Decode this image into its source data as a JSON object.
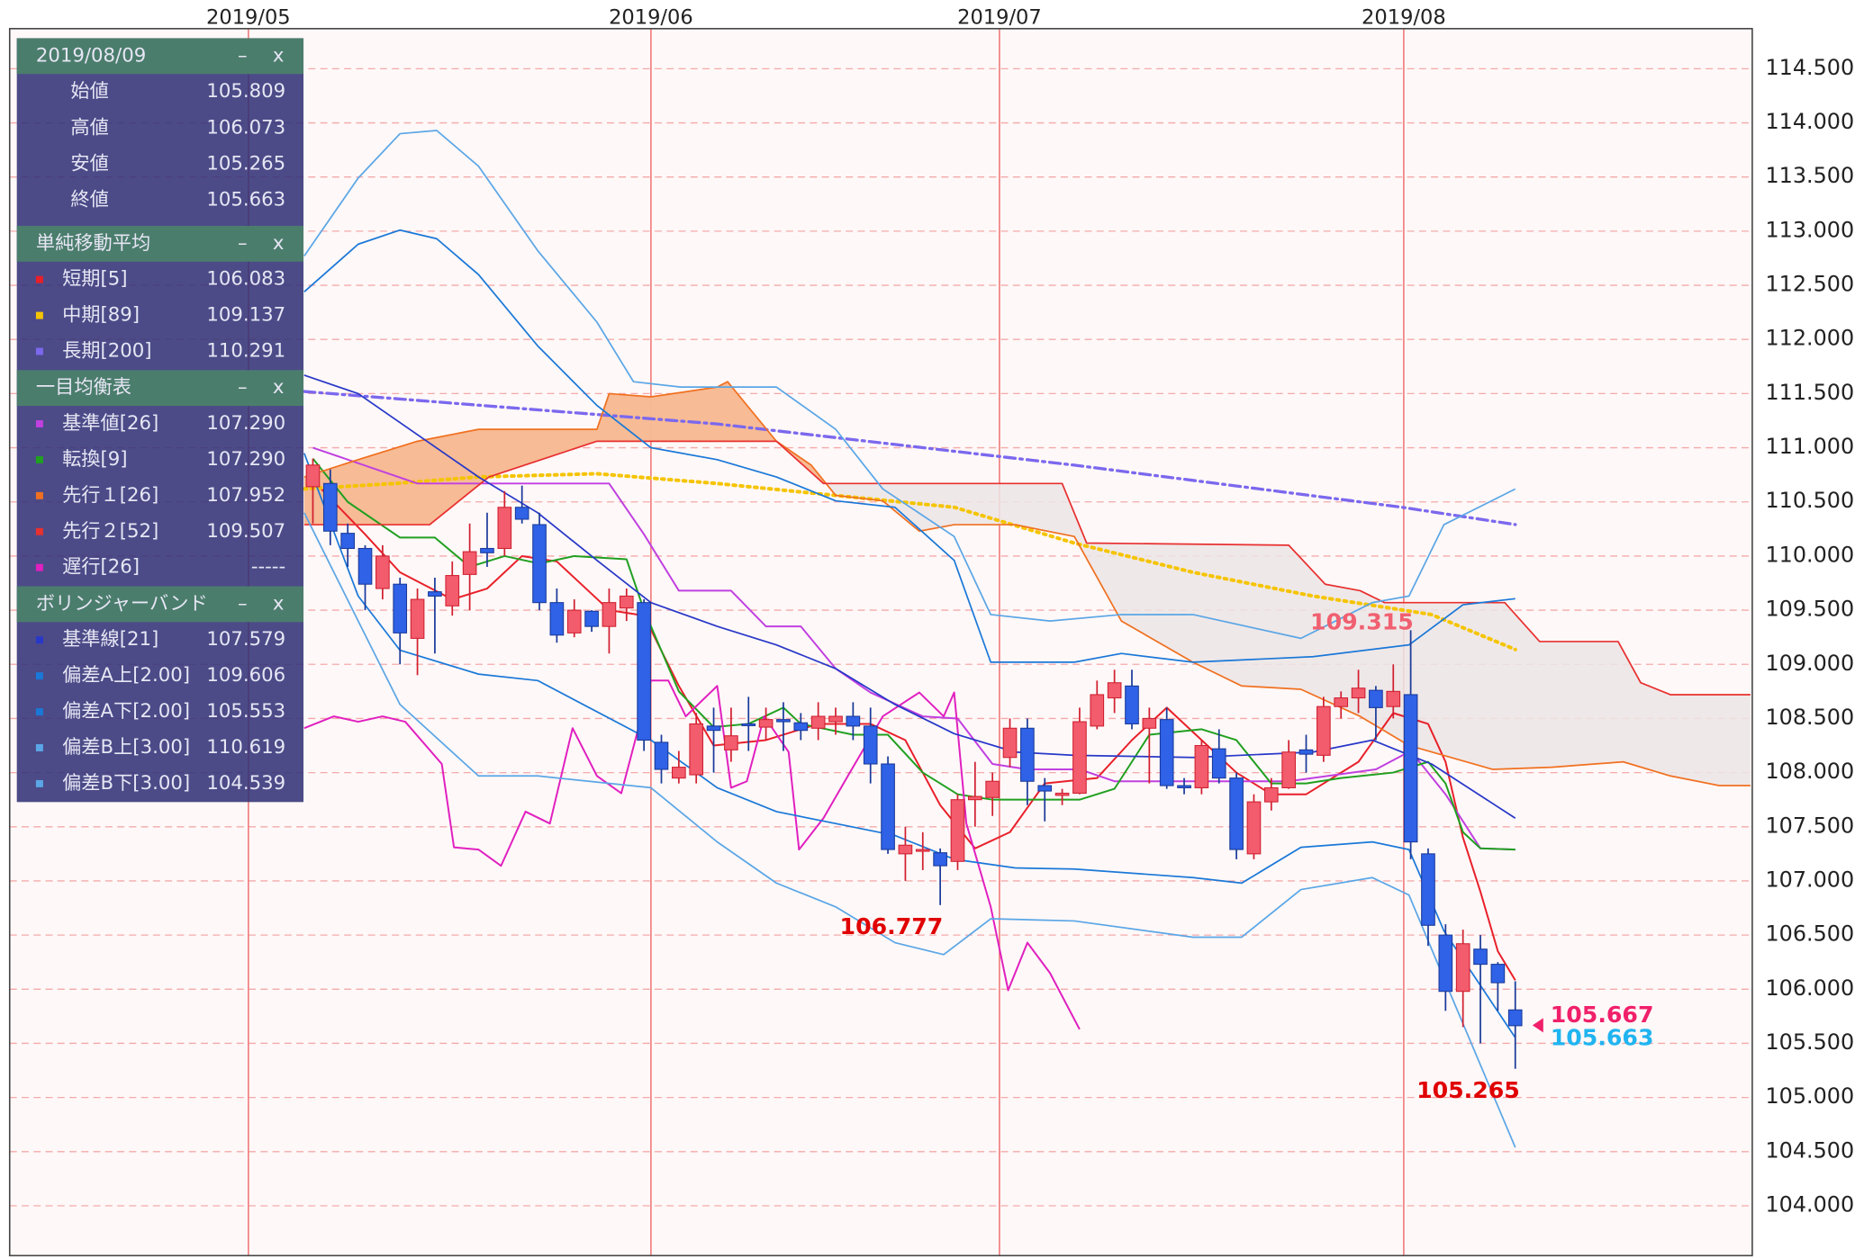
{
  "chart_data": {
    "type": "candlestick",
    "ylim": [
      103.54,
      114.87
    ],
    "yticks": [
      {
        "value": 104,
        "label": "104.000"
      },
      {
        "value": 104.5,
        "label": "104.500"
      },
      {
        "value": 105,
        "label": "105.000"
      },
      {
        "value": 105.5,
        "label": "105.500"
      },
      {
        "value": 106,
        "label": "106.000"
      },
      {
        "value": 106.5,
        "label": "106.500"
      },
      {
        "value": 107,
        "label": "107.000"
      },
      {
        "value": 107.5,
        "label": "107.500"
      },
      {
        "value": 108,
        "label": "108.000"
      },
      {
        "value": 108.5,
        "label": "108.500"
      },
      {
        "value": 109,
        "label": "109.000"
      },
      {
        "value": 109.5,
        "label": "109.500"
      },
      {
        "value": 110,
        "label": "110.000"
      },
      {
        "value": 110.5,
        "label": "110.500"
      },
      {
        "value": 111,
        "label": "111.000"
      },
      {
        "value": 111.5,
        "label": "111.500"
      },
      {
        "value": 112,
        "label": "112.000"
      },
      {
        "value": 112.5,
        "label": "112.500"
      },
      {
        "value": 113,
        "label": "113.000"
      },
      {
        "value": 113.5,
        "label": "113.500"
      },
      {
        "value": 114,
        "label": "114.000"
      },
      {
        "value": 114.5,
        "label": "114.500"
      }
    ],
    "xlim": [
      -17.4,
      82.6
    ],
    "xticks": [
      {
        "value": -3.7,
        "label": "2019/05"
      },
      {
        "value": 19.4,
        "label": "2019/06"
      },
      {
        "value": 39.4,
        "label": "2019/07"
      },
      {
        "value": 62.6,
        "label": "2019/08"
      }
    ],
    "grid": true,
    "up_color": "#f25c6c",
    "down_color": "#2f62e6",
    "open": [
      110.64,
      110.67,
      110.21,
      110.07,
      109.7,
      109.74,
      109.24,
      109.67,
      109.54,
      109.83,
      110.07,
      110.07,
      110.45,
      110.29,
      109.57,
      109.29,
      109.49,
      109.35,
      109.52,
      109.57,
      108.28,
      107.95,
      107.98,
      108.43,
      108.21,
      108.45,
      108.42,
      108.49,
      108.46,
      108.41,
      108.47,
      108.52,
      108.43,
      108.08,
      107.25,
      107.28,
      107.26,
      107.18,
      107.75,
      107.77,
      108.14,
      108.41,
      107.88,
      107.79,
      107.81,
      108.43,
      108.69,
      108.8,
      108.41,
      108.49,
      107.88,
      107.86,
      108.22,
      107.95,
      107.25,
      107.73,
      107.86,
      108.21,
      108.16,
      108.61,
      108.69,
      108.76,
      108.61,
      108.72,
      107.25,
      106.5,
      105.98,
      106.37,
      106.23,
      105.809
    ],
    "high": [
      110.9,
      110.8,
      110.3,
      110.1,
      110.1,
      109.8,
      109.7,
      109.8,
      109.95,
      110.3,
      110.4,
      110.6,
      110.65,
      110.4,
      109.7,
      109.6,
      109.5,
      109.7,
      109.7,
      109.6,
      108.35,
      108.2,
      108.55,
      108.6,
      108.6,
      108.7,
      108.6,
      108.65,
      108.55,
      108.65,
      108.6,
      108.65,
      108.6,
      108.15,
      107.5,
      107.45,
      107.3,
      107.8,
      108.1,
      108.0,
      108.5,
      108.5,
      107.95,
      107.85,
      108.6,
      108.85,
      108.95,
      108.95,
      108.6,
      108.6,
      107.95,
      108.3,
      108.4,
      108.0,
      107.8,
      107.95,
      108.3,
      108.35,
      108.7,
      108.75,
      108.95,
      108.8,
      109.0,
      109.315,
      107.3,
      106.6,
      106.55,
      106.5,
      106.25,
      106.073
    ],
    "low": [
      110.3,
      110.1,
      109.9,
      109.5,
      109.6,
      109.0,
      108.9,
      109.1,
      109.45,
      109.5,
      109.9,
      110.0,
      110.3,
      109.5,
      109.2,
      109.25,
      109.3,
      109.1,
      109.4,
      108.2,
      107.9,
      107.9,
      107.9,
      108.0,
      108.1,
      108.2,
      108.3,
      108.2,
      108.3,
      108.3,
      108.35,
      108.3,
      107.9,
      107.25,
      107.0,
      107.1,
      106.777,
      107.1,
      107.5,
      107.6,
      108.05,
      107.7,
      107.55,
      107.7,
      107.8,
      108.4,
      108.55,
      108.4,
      107.9,
      107.85,
      107.8,
      107.8,
      107.9,
      107.2,
      107.2,
      107.65,
      107.85,
      108.0,
      108.1,
      108.5,
      108.55,
      108.3,
      108.5,
      107.2,
      106.4,
      105.8,
      105.65,
      105.5,
      105.8,
      105.265
    ],
    "close": [
      110.84,
      110.23,
      110.07,
      109.74,
      110.0,
      109.29,
      109.6,
      109.63,
      109.82,
      110.04,
      110.03,
      110.45,
      110.34,
      109.57,
      109.27,
      109.5,
      109.35,
      109.57,
      109.63,
      108.3,
      108.03,
      108.05,
      108.45,
      108.39,
      108.34,
      108.44,
      108.49,
      108.47,
      108.39,
      108.52,
      108.52,
      108.43,
      108.08,
      107.29,
      107.33,
      107.29,
      107.14,
      107.75,
      107.78,
      107.92,
      108.41,
      107.92,
      107.83,
      107.81,
      108.47,
      108.72,
      108.83,
      108.45,
      108.5,
      107.88,
      107.86,
      108.25,
      107.95,
      107.29,
      107.73,
      107.86,
      108.19,
      108.17,
      108.61,
      108.69,
      108.78,
      108.6,
      108.75,
      107.36,
      106.59,
      105.98,
      106.42,
      106.23,
      106.06,
      105.663
    ],
    "cloud_colors": [
      "#f7b68c",
      "#ece5e5"
    ],
    "lines": [
      {
        "color": "#e8202a",
        "width": 1.5,
        "x": [
          0,
          3,
          5,
          8,
          10,
          12,
          14,
          17,
          19,
          21,
          23,
          26,
          29,
          32,
          34,
          36,
          38,
          40,
          42,
          45,
          47,
          49,
          51,
          53,
          55,
          57,
          60,
          62,
          64,
          65,
          66,
          67,
          68,
          69
        ],
        "values": [
          110.7,
          110.2,
          109.85,
          109.6,
          109.7,
          110.0,
          109.95,
          109.5,
          109.45,
          108.8,
          108.25,
          108.3,
          108.45,
          108.45,
          108.3,
          107.7,
          107.3,
          107.45,
          107.9,
          107.95,
          108.3,
          108.6,
          108.3,
          108.0,
          107.8,
          107.8,
          108.1,
          108.55,
          108.45,
          108.1,
          107.4,
          106.9,
          106.35,
          106.083
        ]
      },
      {
        "color": "#f5c400",
        "width": 3,
        "dash": "dot",
        "x": [
          -0.5,
          4.7,
          9.5,
          16.3,
          23.2,
          30,
          36.8,
          43.7,
          50.5,
          57.4,
          64.2,
          69
        ],
        "values": [
          110.62,
          110.67,
          110.73,
          110.76,
          110.67,
          110.56,
          110.45,
          110.12,
          109.85,
          109.63,
          109.46,
          109.137
        ]
      },
      {
        "color": "#7b68ee",
        "width": 2.5,
        "dash": "dashdot",
        "x": [
          -0.5,
          23.2,
          43.7,
          62.5,
          69
        ],
        "values": [
          111.52,
          111.22,
          110.84,
          110.45,
          110.291
        ]
      },
      {
        "color": "#c040e0",
        "width": 1.5,
        "x": [
          0,
          6,
          17,
          19,
          21,
          24,
          26,
          28,
          30,
          32,
          35,
          37,
          39,
          41,
          44,
          46,
          56,
          61,
          63,
          65,
          67,
          69
        ],
        "values": [
          111.0,
          110.67,
          110.67,
          110.2,
          109.68,
          109.68,
          109.35,
          109.35,
          108.96,
          108.74,
          108.52,
          108.5,
          108.08,
          108.03,
          108.03,
          107.92,
          107.92,
          108.03,
          108.2,
          107.8,
          107.3,
          107.29
        ]
      },
      {
        "color": "#20a020",
        "width": 1.5,
        "x": [
          0,
          2,
          5,
          7,
          9,
          11,
          13,
          15,
          18,
          19,
          21,
          23,
          25,
          27,
          28,
          31,
          33,
          35,
          37,
          39,
          42,
          44,
          46,
          48,
          51,
          53,
          55,
          57,
          59,
          62,
          64,
          65,
          66,
          67,
          69
        ],
        "values": [
          110.9,
          110.5,
          110.17,
          110.17,
          109.9,
          110.0,
          109.93,
          110.0,
          109.97,
          109.5,
          108.75,
          108.42,
          108.45,
          108.6,
          108.45,
          108.35,
          108.35,
          108.0,
          107.8,
          107.75,
          107.75,
          107.75,
          107.85,
          108.35,
          108.4,
          108.3,
          107.9,
          107.9,
          107.95,
          108.0,
          108.1,
          107.9,
          107.45,
          107.3,
          107.29
        ]
      },
      {
        "color": "#f07020",
        "width": 1.3,
        "x": [
          -0.5,
          2.6,
          6,
          9.5,
          12.9,
          16.3,
          17,
          19.4,
          23.2,
          23.8,
          26.6,
          28.6,
          30,
          32.7,
          34.8,
          36.8,
          40.3,
          43.7,
          46.4,
          50.5,
          53.3,
          56.7,
          60.1,
          62.9,
          67.7,
          71.1,
          75.2,
          77.9,
          80.7,
          82.5
        ],
        "values": [
          110.73,
          110.89,
          111.06,
          111.17,
          111.17,
          111.17,
          111.5,
          111.47,
          111.56,
          111.61,
          111.06,
          110.84,
          110.56,
          110.51,
          110.23,
          110.29,
          110.29,
          110.18,
          109.4,
          109.02,
          108.8,
          108.77,
          108.52,
          108.25,
          108.03,
          108.05,
          108.1,
          107.97,
          107.88,
          107.88
        ]
      },
      {
        "color": "#e83030",
        "width": 1.3,
        "x": [
          -0.5,
          6.7,
          10.1,
          16.3,
          26.6,
          29.3,
          43,
          44.4,
          56,
          58.1,
          60.1,
          61.5,
          68.4,
          70.4,
          74.9,
          76.2,
          77.9,
          82.5
        ],
        "values": [
          110.29,
          110.29,
          110.73,
          111.06,
          111.06,
          110.67,
          110.67,
          110.12,
          110.1,
          109.74,
          109.68,
          109.57,
          109.57,
          109.21,
          109.21,
          108.83,
          108.72,
          108.72
        ]
      },
      {
        "color": "#e020c0",
        "width": 1.5,
        "x": [
          -0.5,
          1.2,
          2.6,
          4.0,
          5.3,
          7.4,
          8.1,
          9.5,
          10.8,
          12.2,
          13.6,
          14.9,
          16.3,
          17.7,
          19.4,
          20.4,
          21.4,
          23.2,
          24.0,
          24.9,
          25.9,
          27.3,
          27.9,
          29.3,
          30.7,
          32.7,
          34.8,
          36.2,
          36.8,
          37.5,
          38.9,
          39.9,
          41.0,
          42.3,
          44.0
        ],
        "values": [
          108.41,
          108.52,
          108.47,
          108.52,
          108.47,
          108.08,
          107.31,
          107.29,
          107.14,
          107.64,
          107.53,
          108.41,
          107.97,
          107.81,
          108.85,
          108.85,
          108.52,
          108.8,
          107.86,
          107.92,
          108.52,
          108.19,
          107.29,
          107.58,
          107.97,
          108.52,
          108.74,
          108.52,
          108.74,
          107.53,
          106.76,
          105.99,
          106.43,
          106.15,
          105.63
        ]
      },
      {
        "color": "#2838c8",
        "width": 1.3,
        "x": [
          -0.5,
          2.6,
          9.5,
          12.9,
          16.3,
          19.4,
          23.2,
          26.6,
          30,
          33.4,
          36.8,
          40.3,
          43.7,
          50.5,
          57.4,
          60.8,
          64.2,
          69
        ],
        "values": [
          111.67,
          111.5,
          110.73,
          110.4,
          109.96,
          109.57,
          109.35,
          109.18,
          108.96,
          108.63,
          108.36,
          108.19,
          108.16,
          108.14,
          108.19,
          108.3,
          108.08,
          107.579
        ]
      },
      {
        "color": "#1a78d8",
        "width": 1.3,
        "x": [
          -0.5,
          2.6,
          5.0,
          7.1,
          9.5,
          12.9,
          16.3,
          19.4,
          23.2,
          26.6,
          30,
          33.4,
          36.8,
          38.9,
          43.7,
          46.4,
          50.5,
          57.4,
          62.9,
          66,
          69
        ],
        "values": [
          112.44,
          112.88,
          113.01,
          112.93,
          112.6,
          111.94,
          111.39,
          111.0,
          110.89,
          110.73,
          110.51,
          110.45,
          109.96,
          109.02,
          109.02,
          109.1,
          109.02,
          109.07,
          109.18,
          109.55,
          109.606
        ]
      },
      {
        "color": "#1a78d8",
        "width": 1.3,
        "x": [
          -0.5,
          2.6,
          5.0,
          9.5,
          12.9,
          19.4,
          23.2,
          26.6,
          30,
          33.4,
          36.8,
          40.3,
          43.7,
          50.5,
          53.3,
          56.7,
          60.8,
          62.9,
          64.9,
          69
        ],
        "values": [
          110.95,
          109.63,
          109.13,
          108.91,
          108.85,
          108.3,
          107.86,
          107.64,
          107.53,
          107.42,
          107.2,
          107.12,
          107.11,
          107.03,
          106.98,
          107.31,
          107.36,
          107.29,
          106.54,
          105.553
        ]
      },
      {
        "color": "#5aa6e6",
        "width": 1.3,
        "x": [
          -0.5,
          2.6,
          5.0,
          7.1,
          9.5,
          12.9,
          16.3,
          18.4,
          21.1,
          26.6,
          30,
          32.7,
          36.8,
          38.9,
          42.3,
          46.4,
          50.5,
          56.7,
          60.8,
          62.9,
          64.9,
          69
        ],
        "values": [
          112.77,
          113.49,
          113.9,
          113.93,
          113.6,
          112.82,
          112.16,
          111.61,
          111.56,
          111.56,
          111.17,
          110.62,
          110.18,
          109.46,
          109.4,
          109.46,
          109.46,
          109.24,
          109.57,
          109.63,
          110.29,
          110.619
        ]
      },
      {
        "color": "#5aa6e6",
        "width": 1.3,
        "x": [
          -0.5,
          2.6,
          5.0,
          9.5,
          12.9,
          19.4,
          23.2,
          26.6,
          30,
          33.4,
          36.2,
          38.9,
          43.7,
          50.5,
          53.3,
          56.7,
          60.8,
          62.9,
          64.9,
          69
        ],
        "values": [
          110.4,
          109.4,
          108.63,
          107.97,
          107.97,
          107.86,
          107.36,
          106.98,
          106.76,
          106.43,
          106.32,
          106.65,
          106.63,
          106.48,
          106.48,
          106.92,
          107.03,
          106.87,
          106.1,
          104.539
        ]
      }
    ],
    "annotations": [
      {
        "value": 106.777,
        "x": 33.2,
        "anchor": "below",
        "color": "#e00000"
      },
      {
        "value": 109.315,
        "x": 60.2,
        "anchor": "above",
        "color": "#f06070"
      },
      {
        "value": 105.265,
        "x": 66.3,
        "anchor": "below",
        "color": "#e00000"
      }
    ],
    "price_markers": [
      {
        "value": 105.667,
        "color": "#f0206a"
      },
      {
        "value": 105.663,
        "color": "#20b4f0"
      }
    ]
  },
  "panel": {
    "date": "2019/08/09",
    "minimize": "–",
    "close": "x",
    "ohlc": [
      {
        "label": "始値",
        "value": "105.809"
      },
      {
        "label": "高値",
        "value": "106.073"
      },
      {
        "label": "安値",
        "value": "105.265"
      },
      {
        "label": "終値",
        "value": "105.663"
      }
    ],
    "sections": [
      {
        "title": "単純移動平均",
        "rows": [
          {
            "label": "短期[5]",
            "value": "106.083",
            "color": "#e8202a"
          },
          {
            "label": "中期[89]",
            "value": "109.137",
            "color": "#f5c400"
          },
          {
            "label": "長期[200]",
            "value": "110.291",
            "color": "#7b68ee"
          }
        ]
      },
      {
        "title": "一目均衡表",
        "rows": [
          {
            "label": "基準値[26]",
            "value": "107.290",
            "color": "#c040e0"
          },
          {
            "label": "転換[9]",
            "value": "107.290",
            "color": "#20a020"
          },
          {
            "label": "先行１[26]",
            "value": "107.952",
            "color": "#f07020"
          },
          {
            "label": "先行２[52]",
            "value": "109.507",
            "color": "#e83030"
          },
          {
            "label": "遅行[26]",
            "value": "-----",
            "color": "#e020c0"
          }
        ]
      },
      {
        "title": "ボリンジャーバンド",
        "rows": [
          {
            "label": "基準線[21]",
            "value": "107.579",
            "color": "#2838c8"
          },
          {
            "label": "偏差A上[2.00]",
            "value": "109.606",
            "color": "#1a78d8"
          },
          {
            "label": "偏差A下[2.00]",
            "value": "105.553",
            "color": "#1a78d8"
          },
          {
            "label": "偏差B上[3.00]",
            "value": "110.619",
            "color": "#5aa6e6"
          },
          {
            "label": "偏差B下[3.00]",
            "value": "104.539",
            "color": "#5aa6e6"
          }
        ]
      }
    ]
  }
}
